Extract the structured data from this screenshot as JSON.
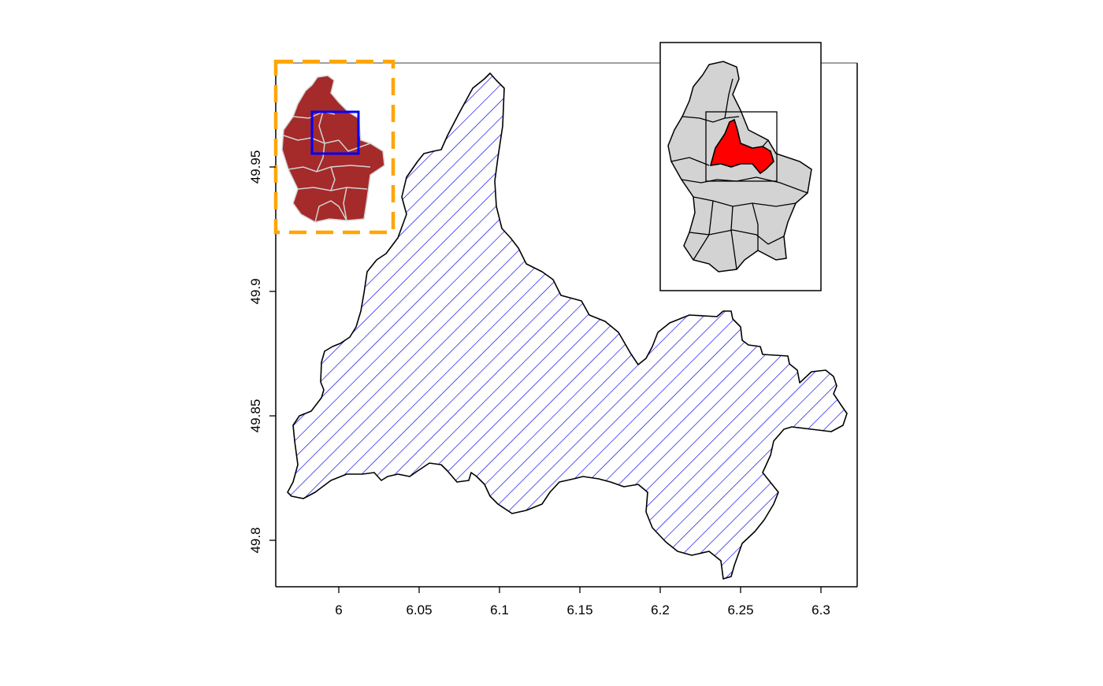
{
  "chart_data": {
    "type": "map",
    "title": "",
    "xlabel": "",
    "ylabel": "",
    "xlim": [
      5.96,
      6.32
    ],
    "ylim": [
      49.78,
      49.99
    ],
    "x_ticks": [
      6,
      6.05,
      6.1,
      6.15,
      6.2,
      6.25,
      6.3
    ],
    "x_tick_labels": [
      "6",
      "6.05",
      "6.1",
      "6.15",
      "6.2",
      "6.25",
      "6.3"
    ],
    "y_ticks": [
      49.8,
      49.85,
      49.9,
      49.95
    ],
    "y_tick_labels": [
      "49.8",
      "49.85",
      "49.9",
      "49.95"
    ],
    "main_region": {
      "fill": "hatched",
      "hatch_color": "#0000ee",
      "outline": "#000000"
    },
    "inset_left": {
      "fill": "#a52a2a",
      "border_color": "#ffa500",
      "border_style": "dashed",
      "extent_box_color": "#0000ff"
    },
    "inset_right": {
      "fill": "#d3d3d3",
      "highlight": "#ff0000",
      "border_color": "#000000"
    },
    "grid": false
  },
  "colors": {
    "hatch": "#0000ee",
    "dark_red": "#a52a2a",
    "orange": "#ffa500",
    "blue": "#0000ff",
    "grey": "#d3d3d3",
    "red": "#ff0000"
  }
}
